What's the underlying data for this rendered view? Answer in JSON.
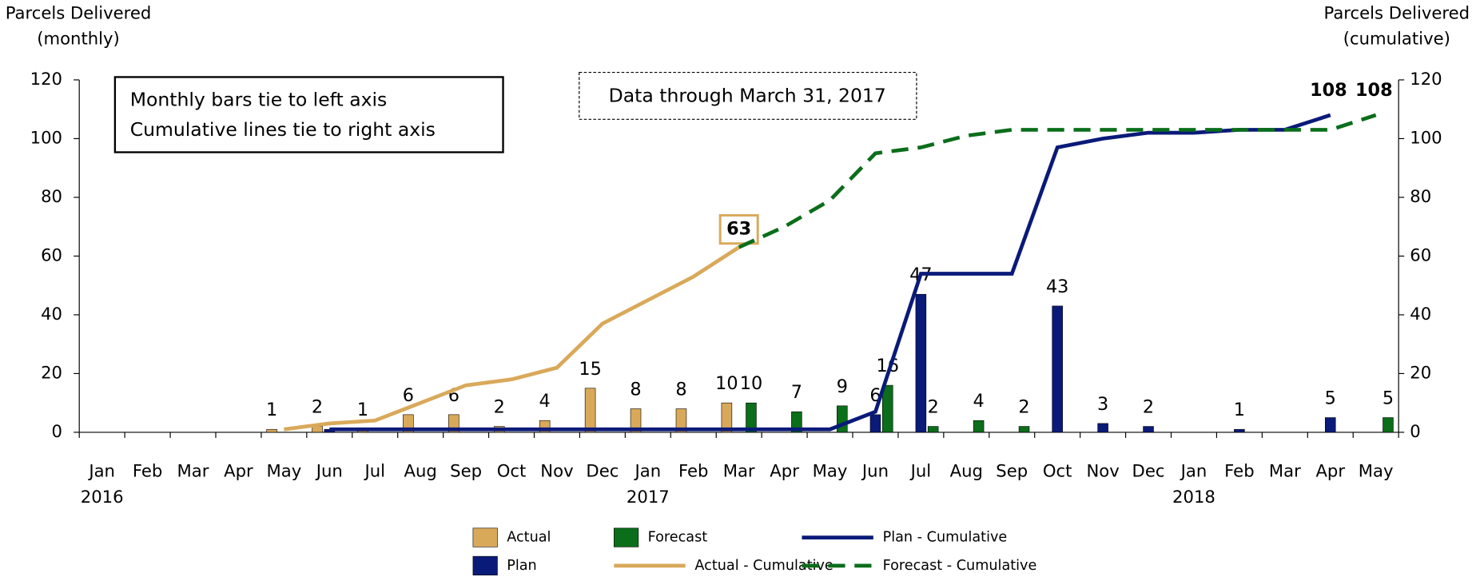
{
  "chart_data": {
    "type": "bar",
    "ylabel": [
      "Parcels Delivered",
      "(monthly)"
    ],
    "y2label": [
      "Parcels Delivered",
      "(cumulative)"
    ],
    "annotations": [
      [
        "Monthly bars tie to left axis",
        "Cumulative lines tie to right axis"
      ],
      "Data through March 31, 2017"
    ],
    "categories": [
      "Jan",
      "Feb",
      "Mar",
      "Apr",
      "May",
      "Jun",
      "Jul",
      "Aug",
      "Sep",
      "Oct",
      "Nov",
      "Dec",
      "Jan",
      "Feb",
      "Mar",
      "Apr",
      "May",
      "Jun",
      "Jul",
      "Aug",
      "Sep",
      "Oct",
      "Nov",
      "Dec",
      "Jan",
      "Feb",
      "Mar",
      "Apr",
      "May"
    ],
    "year_labels": [
      "2016",
      null,
      null,
      null,
      null,
      null,
      null,
      null,
      null,
      null,
      null,
      null,
      "2017",
      null,
      null,
      null,
      null,
      null,
      null,
      null,
      null,
      null,
      null,
      null,
      "2018",
      null,
      null,
      null,
      null
    ],
    "ylim": [
      0,
      120
    ],
    "yticks": [
      0,
      20,
      40,
      60,
      80,
      100,
      120
    ],
    "y2lim": [
      0,
      120
    ],
    "y2ticks": [
      0,
      20,
      40,
      60,
      80,
      100,
      120
    ],
    "series": [
      {
        "name": "Actual",
        "type": "bar",
        "color": "#d9a95a",
        "values": [
          null,
          null,
          null,
          null,
          1,
          2,
          1,
          6,
          6,
          2,
          4,
          15,
          8,
          8,
          10,
          null,
          null,
          null,
          null,
          null,
          null,
          null,
          null,
          null,
          null,
          null,
          null,
          null,
          null
        ]
      },
      {
        "name": "Plan",
        "type": "bar",
        "color": "#0a1a78",
        "values": [
          null,
          null,
          null,
          null,
          null,
          1,
          null,
          null,
          null,
          null,
          null,
          null,
          null,
          null,
          null,
          null,
          null,
          6,
          47,
          null,
          null,
          43,
          3,
          2,
          null,
          1,
          null,
          5,
          null
        ],
        "value_labels": [
          null,
          null,
          null,
          null,
          null,
          null,
          null,
          null,
          null,
          null,
          null,
          null,
          null,
          null,
          null,
          null,
          null,
          "6",
          "47",
          null,
          null,
          "43",
          "3",
          "2",
          null,
          "1",
          null,
          "5",
          null
        ]
      },
      {
        "name": "Forecast",
        "type": "bar",
        "color": "#0a6e1a",
        "values": [
          null,
          null,
          null,
          null,
          null,
          null,
          null,
          null,
          null,
          null,
          null,
          null,
          null,
          null,
          10,
          7,
          9,
          16,
          2,
          4,
          2,
          null,
          null,
          null,
          null,
          null,
          null,
          null,
          5
        ]
      },
      {
        "name": "Actual - Cumulative",
        "type": "line",
        "axis": "y2",
        "color": "#d9a95a",
        "values": [
          null,
          null,
          null,
          null,
          1,
          3,
          4,
          10,
          16,
          18,
          22,
          37,
          45,
          53,
          63,
          null,
          null,
          null,
          null,
          null,
          null,
          null,
          null,
          null,
          null,
          null,
          null,
          null,
          null
        ]
      },
      {
        "name": "Plan - Cumulative",
        "type": "line",
        "axis": "y2",
        "color": "#0a1a78",
        "values": [
          null,
          null,
          null,
          null,
          null,
          1,
          1,
          1,
          1,
          1,
          1,
          1,
          1,
          1,
          1,
          1,
          1,
          7,
          54,
          54,
          54,
          97,
          100,
          102,
          102,
          103,
          103,
          108,
          null
        ]
      },
      {
        "name": "Forecast - Cumulative",
        "type": "line",
        "axis": "y2",
        "color": "#0a6e1a",
        "dashed": true,
        "values": [
          null,
          null,
          null,
          null,
          null,
          null,
          null,
          null,
          null,
          null,
          null,
          null,
          null,
          null,
          63,
          70,
          79,
          95,
          97,
          101,
          103,
          103,
          103,
          103,
          103,
          103,
          103,
          103,
          108
        ]
      }
    ]
  }
}
